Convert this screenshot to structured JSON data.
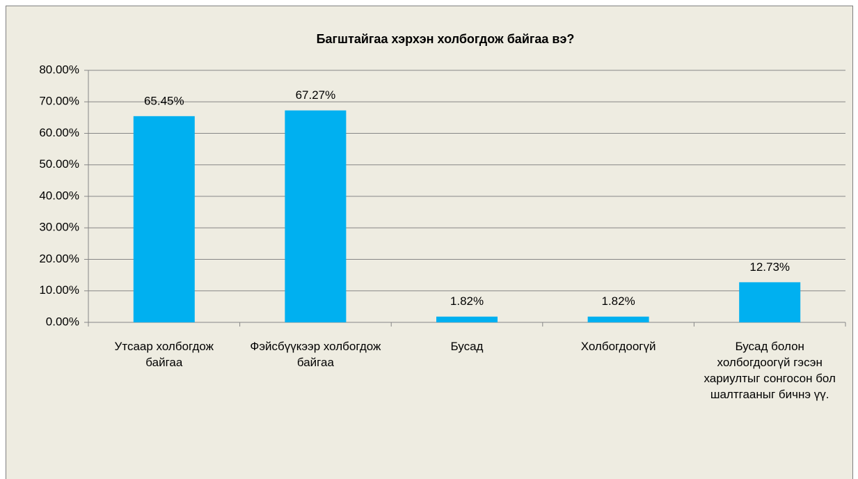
{
  "chart_data": {
    "type": "bar",
    "title": "Багштайгаа хэрхэн холбогдож байгаа вэ?",
    "categories": [
      "Утсаар холбогдож байгаа",
      "Фэйсбүүкээр холбогдож байгаа",
      "Бусад",
      "Холбогдоогүй",
      "Бусад болон холбогдоогүй гэсэн хариултыг сонгосон бол шалтгааныг бичнэ үү."
    ],
    "values": [
      65.45,
      67.27,
      1.82,
      1.82,
      12.73
    ],
    "value_labels": [
      "65.45%",
      "67.27%",
      "1.82%",
      "1.82%",
      "12.73%"
    ],
    "color": "#00b0f0",
    "ylim": [
      0,
      80
    ],
    "yticks": [
      {
        "value": 0,
        "label": "0.00%"
      },
      {
        "value": 10,
        "label": "10.00%"
      },
      {
        "value": 20,
        "label": "20.00%"
      },
      {
        "value": 30,
        "label": "30.00%"
      },
      {
        "value": 40,
        "label": "40.00%"
      },
      {
        "value": 50,
        "label": "50.00%"
      },
      {
        "value": 60,
        "label": "60.00%"
      },
      {
        "value": 70,
        "label": "70.00%"
      },
      {
        "value": 80,
        "label": "80.00%"
      }
    ],
    "grid": true
  }
}
